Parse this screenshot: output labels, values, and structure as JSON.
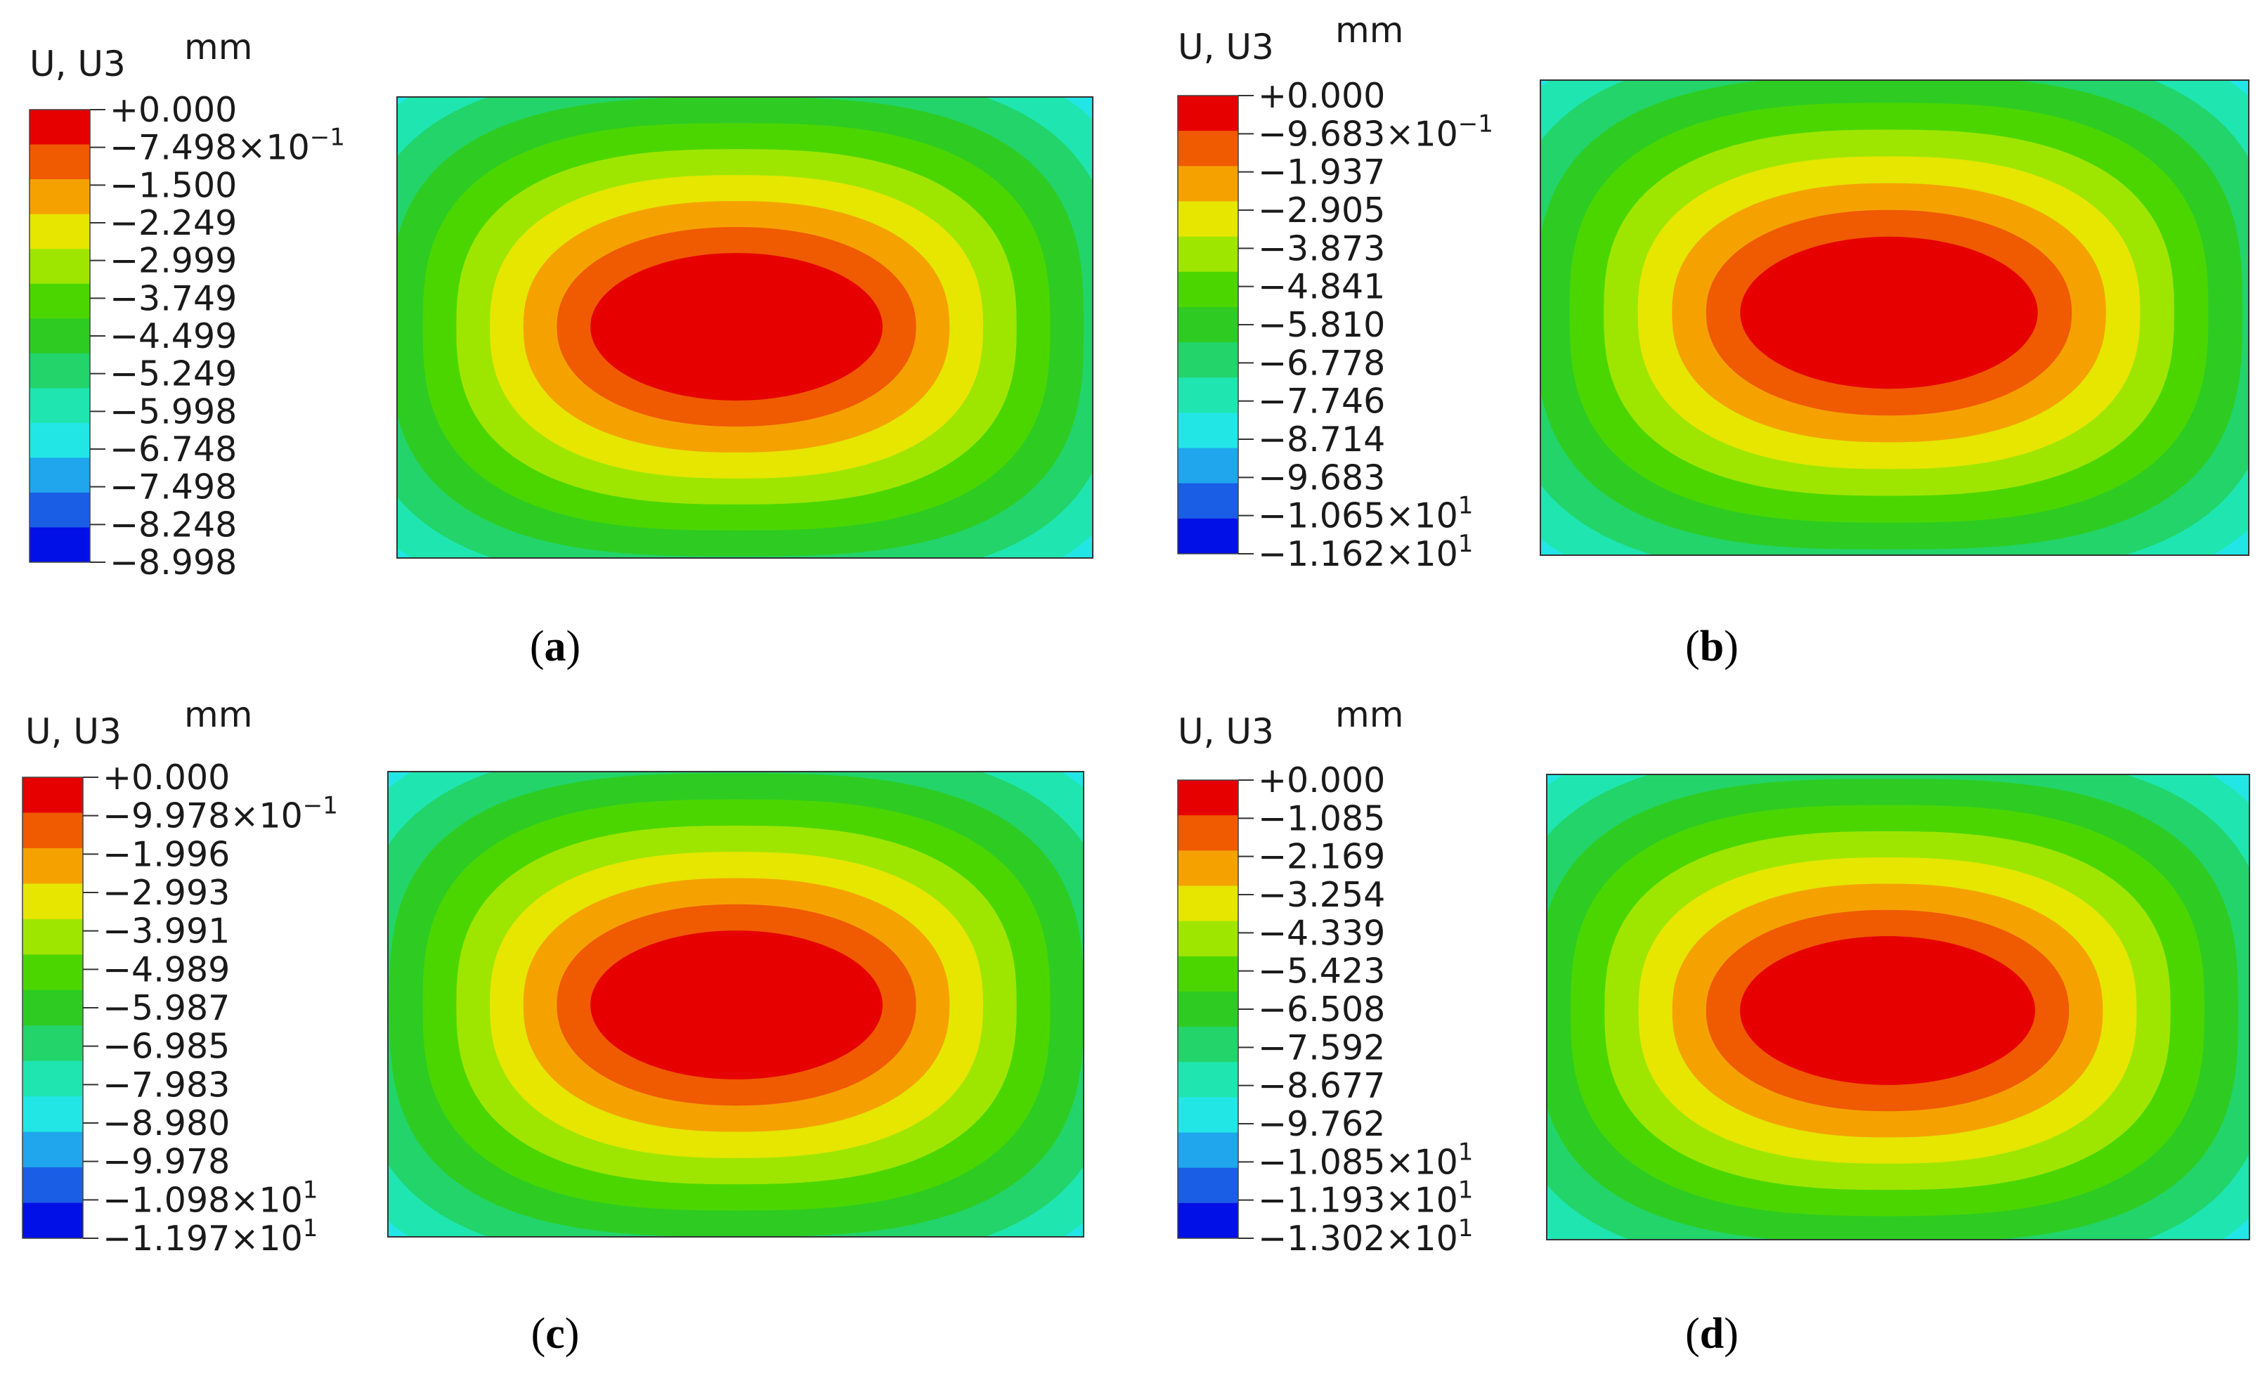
{
  "chart_data": [
    {
      "type": "heatmap",
      "caption": "(a)",
      "caption_letter": "a",
      "legend_title": "U, U3",
      "unit": "mm",
      "tick_labels": [
        {
          "text": "+0.000"
        },
        {
          "text": "−7.498×10",
          "exp": "−1"
        },
        {
          "text": "−1.500"
        },
        {
          "text": "−2.249"
        },
        {
          "text": "−2.999"
        },
        {
          "text": "−3.749"
        },
        {
          "text": "−4.499"
        },
        {
          "text": "−5.249"
        },
        {
          "text": "−5.998"
        },
        {
          "text": "−6.748"
        },
        {
          "text": "−7.498"
        },
        {
          "text": "−8.248"
        },
        {
          "text": "−8.998"
        }
      ],
      "max_value": 0.0,
      "min_value": -8.998
    },
    {
      "type": "heatmap",
      "caption": "(b)",
      "caption_letter": "b",
      "legend_title": "U, U3",
      "unit": "mm",
      "tick_labels": [
        {
          "text": "+0.000"
        },
        {
          "text": "−9.683×10",
          "exp": "−1"
        },
        {
          "text": "−1.937"
        },
        {
          "text": "−2.905"
        },
        {
          "text": "−3.873"
        },
        {
          "text": "−4.841"
        },
        {
          "text": "−5.810"
        },
        {
          "text": "−6.778"
        },
        {
          "text": "−7.746"
        },
        {
          "text": "−8.714"
        },
        {
          "text": "−9.683"
        },
        {
          "text": "−1.065×10",
          "exp": "1"
        },
        {
          "text": "−1.162×10",
          "exp": "1"
        }
      ],
      "max_value": 0.0,
      "min_value": -11.62
    },
    {
      "type": "heatmap",
      "caption": "(c)",
      "caption_letter": "c",
      "legend_title": "U, U3",
      "unit": "mm",
      "tick_labels": [
        {
          "text": "+0.000"
        },
        {
          "text": "−9.978×10",
          "exp": "−1"
        },
        {
          "text": "−1.996"
        },
        {
          "text": "−2.993"
        },
        {
          "text": "−3.991"
        },
        {
          "text": "−4.989"
        },
        {
          "text": "−5.987"
        },
        {
          "text": "−6.985"
        },
        {
          "text": "−7.983"
        },
        {
          "text": "−8.980"
        },
        {
          "text": "−9.978"
        },
        {
          "text": "−1.098×10",
          "exp": "1"
        },
        {
          "text": "−1.197×10",
          "exp": "1"
        }
      ],
      "max_value": 0.0,
      "min_value": -11.97
    },
    {
      "type": "heatmap",
      "caption": "(d)",
      "caption_letter": "d",
      "legend_title": "U, U3",
      "unit": "mm",
      "tick_labels": [
        {
          "text": "+0.000"
        },
        {
          "text": "−1.085"
        },
        {
          "text": "−2.169"
        },
        {
          "text": "−3.254"
        },
        {
          "text": "−4.339"
        },
        {
          "text": "−5.423"
        },
        {
          "text": "−6.508"
        },
        {
          "text": "−7.592"
        },
        {
          "text": "−8.677"
        },
        {
          "text": "−9.762"
        },
        {
          "text": "−1.085×10",
          "exp": "1"
        },
        {
          "text": "−1.193×10",
          "exp": "1"
        },
        {
          "text": "−1.302×10",
          "exp": "1"
        }
      ],
      "max_value": 0.0,
      "min_value": -13.02
    }
  ],
  "contour_colors": [
    "#e60000",
    "#f05a00",
    "#f5a200",
    "#e6e600",
    "#9ee600",
    "#4cd600",
    "#2ecc22",
    "#22d46a",
    "#1fe6b0",
    "#22e6e6",
    "#1fa6ec",
    "#1a5ee6",
    "#0010e6"
  ]
}
